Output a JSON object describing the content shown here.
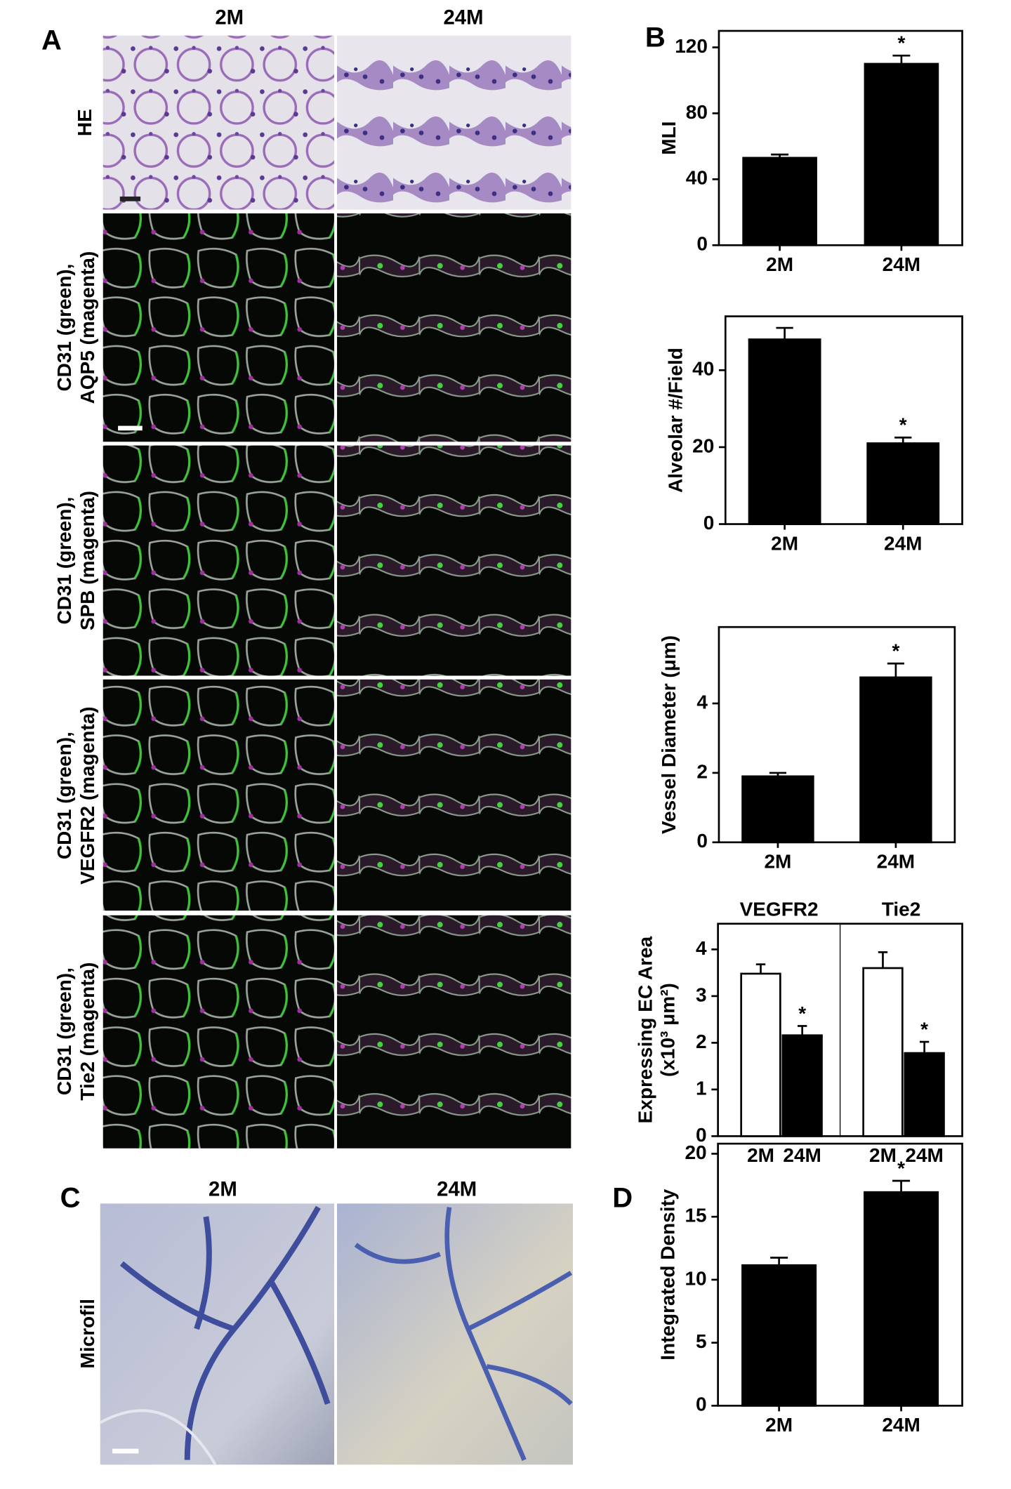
{
  "figure": {
    "panels": {
      "a": "A",
      "b": "B",
      "c": "C",
      "d": "D"
    },
    "panel_a": {
      "columns": [
        "2M",
        "24M"
      ],
      "rows": [
        [
          "HE"
        ],
        [
          "CD31 (green),",
          "AQP5 (magenta)"
        ],
        [
          "CD31 (green),",
          "SPB (magenta)"
        ],
        [
          "CD31 (green),",
          "VEGFR2 (magenta)"
        ],
        [
          "CD31 (green),",
          "Tie2 (magenta)"
        ]
      ]
    },
    "panel_c": {
      "columns": [
        "2M",
        "24M"
      ],
      "row": "Microfil"
    }
  },
  "chart_data": [
    {
      "type": "bar",
      "ylabel": "MLI",
      "categories": [
        "2M",
        "24M"
      ],
      "values": [
        53,
        110
      ],
      "errors": [
        2,
        5
      ],
      "significance": [
        null,
        "*"
      ],
      "color": "#000000",
      "ylim": [
        0,
        130
      ],
      "yticks": [
        0,
        40,
        80,
        120
      ]
    },
    {
      "type": "bar",
      "ylabel": "Alveolar #/Field",
      "categories": [
        "2M",
        "24M"
      ],
      "values": [
        48,
        21
      ],
      "errors": [
        3,
        1.5
      ],
      "significance": [
        null,
        "*"
      ],
      "color": "#000000",
      "ylim": [
        0,
        54
      ],
      "yticks": [
        0,
        20,
        40
      ]
    },
    {
      "type": "bar",
      "ylabel": "Vessel Diameter (μm)",
      "categories": [
        "2M",
        "24M"
      ],
      "values": [
        1.9,
        4.75
      ],
      "errors": [
        0.1,
        0.4
      ],
      "significance": [
        null,
        "*"
      ],
      "color": "#000000",
      "ylim": [
        0,
        6.2
      ],
      "yticks": [
        0,
        2,
        4
      ]
    },
    {
      "type": "bar",
      "ylabel": [
        "Expressing EC Area",
        "(x10³ μm²)"
      ],
      "categories": [
        "VEGFR2",
        "Tie2"
      ],
      "series": [
        {
          "name": "2M",
          "color": "#ffffff",
          "values": [
            3.48,
            3.6
          ],
          "errors": [
            0.2,
            0.34
          ],
          "significance": [
            null,
            null
          ]
        },
        {
          "name": "24M",
          "color": "#000000",
          "values": [
            2.16,
            1.78
          ],
          "errors": [
            0.2,
            0.24
          ],
          "significance": [
            "*",
            "*"
          ]
        }
      ],
      "ylim": [
        0,
        4.55
      ],
      "yticks": [
        0,
        1,
        2,
        3,
        4
      ]
    },
    {
      "type": "bar",
      "ylabel": "Integrated Density",
      "categories": [
        "2M",
        "24M"
      ],
      "values": [
        11.15,
        16.95
      ],
      "errors": [
        0.6,
        0.9
      ],
      "significance": [
        null,
        "*"
      ],
      "color": "#000000",
      "ylim": [
        0,
        20.8
      ],
      "yticks": [
        0,
        5,
        10,
        15,
        20
      ]
    }
  ]
}
